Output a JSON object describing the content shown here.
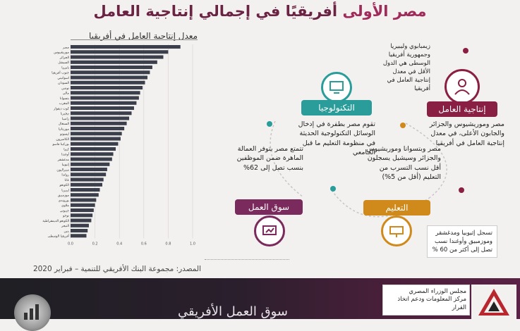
{
  "title": {
    "part1": "مصر الأولى",
    "part2": "أفريقيًا في إجمالي إنتاجية العامل"
  },
  "chart_title": "معدل إنتاجية العامل في أفريقيا",
  "source": "المصدر: مجموعة البنك الأفريقي للتنمية – فبراير 2020",
  "chart_data": {
    "type": "bar",
    "orientation": "horizontal",
    "title": "معدل إنتاجية العامل في أفريقيا",
    "xlim": [
      0,
      1.0
    ],
    "xticks": [
      "0.0",
      "0.2",
      "0.4",
      "0.6",
      "0.8",
      "1.0"
    ],
    "categories": [
      "مصر",
      "موريشيوس",
      "الجزائر",
      "السيشل",
      "ناميبيا",
      "جنوب أفريقيا",
      "اسواتيني",
      "السودان",
      "تونس",
      "مالي",
      "بتسوانا",
      "المغرب",
      "كوت ديفوار",
      "نيجيريا",
      "زامبيا",
      "السنغال",
      "موريتانيا",
      "ليسوتو",
      "الكاميرون",
      "بوركينا فاسو",
      "كينيا",
      "أوغندا",
      "مدغشقر",
      "إثيوبيا",
      "سيراليون",
      "رواندا",
      "غانا",
      "الكونغو",
      "ليبيريا",
      "موزمبيق",
      "بوروندي",
      "ملاوي",
      "جيبوتي",
      "توجو",
      "الكونغو الديمقراطية",
      "النيجر",
      "بنين",
      "أفريقيا الوسطى"
    ],
    "values": [
      0.9,
      0.8,
      0.76,
      0.71,
      0.67,
      0.65,
      0.63,
      0.61,
      0.59,
      0.57,
      0.56,
      0.54,
      0.52,
      0.5,
      0.48,
      0.46,
      0.44,
      0.42,
      0.41,
      0.39,
      0.37,
      0.35,
      0.34,
      0.32,
      0.3,
      0.29,
      0.27,
      0.26,
      0.24,
      0.23,
      0.21,
      0.2,
      0.19,
      0.18,
      0.17,
      0.15,
      0.14,
      0.13
    ],
    "bar_color": "#3a3f4b"
  },
  "cards": {
    "worker": {
      "label": "إنتاجية العامل",
      "color": "#8a1f44",
      "text_top": "زيمبابوي وليبيريا وجمهورية أفريقيا الوسطى هي الدول الأقل في معدل إنتاجية العامل في أفريقيا",
      "text_bottom": "مصر وموريشيوس والجزائر والجابون الأعلى، في معدل إنتاجية العامل في أفريقيا"
    },
    "technology": {
      "label": "التكنولوجيا",
      "color": "#2a9d9a",
      "text": "تقوم مصر بطفرة في إدخال الوسائل التكنولوجية الحديثة في منظومة التعليم ما قبل الجامعي"
    },
    "education": {
      "label": "التعليم",
      "color": "#d08a1c",
      "text_top": "مصر وبتسوانا وموريشيوس والجزائر وسيشيل يسجلون أقل نسب التسرب من التعليم (أقل من 5%)",
      "text_bottom": "تسجل إثيوبيا ومدغشقر وموزمبيق وأوغندا نسب تصل إلى أكثر من 60 %"
    },
    "labor": {
      "label": "سوق العمل",
      "color": "#7a2a5c",
      "text": "تتمتع مصر بتوفر العمالة الماهرة ضمن الموظفين بنسب تصل إلى 62%"
    }
  },
  "org": {
    "line1": "مجلس الوزراء المصري",
    "line2": "مركز المعلومات ودعم اتخاذ القرار"
  },
  "footer_title": "سوق العمل الأفريقي"
}
